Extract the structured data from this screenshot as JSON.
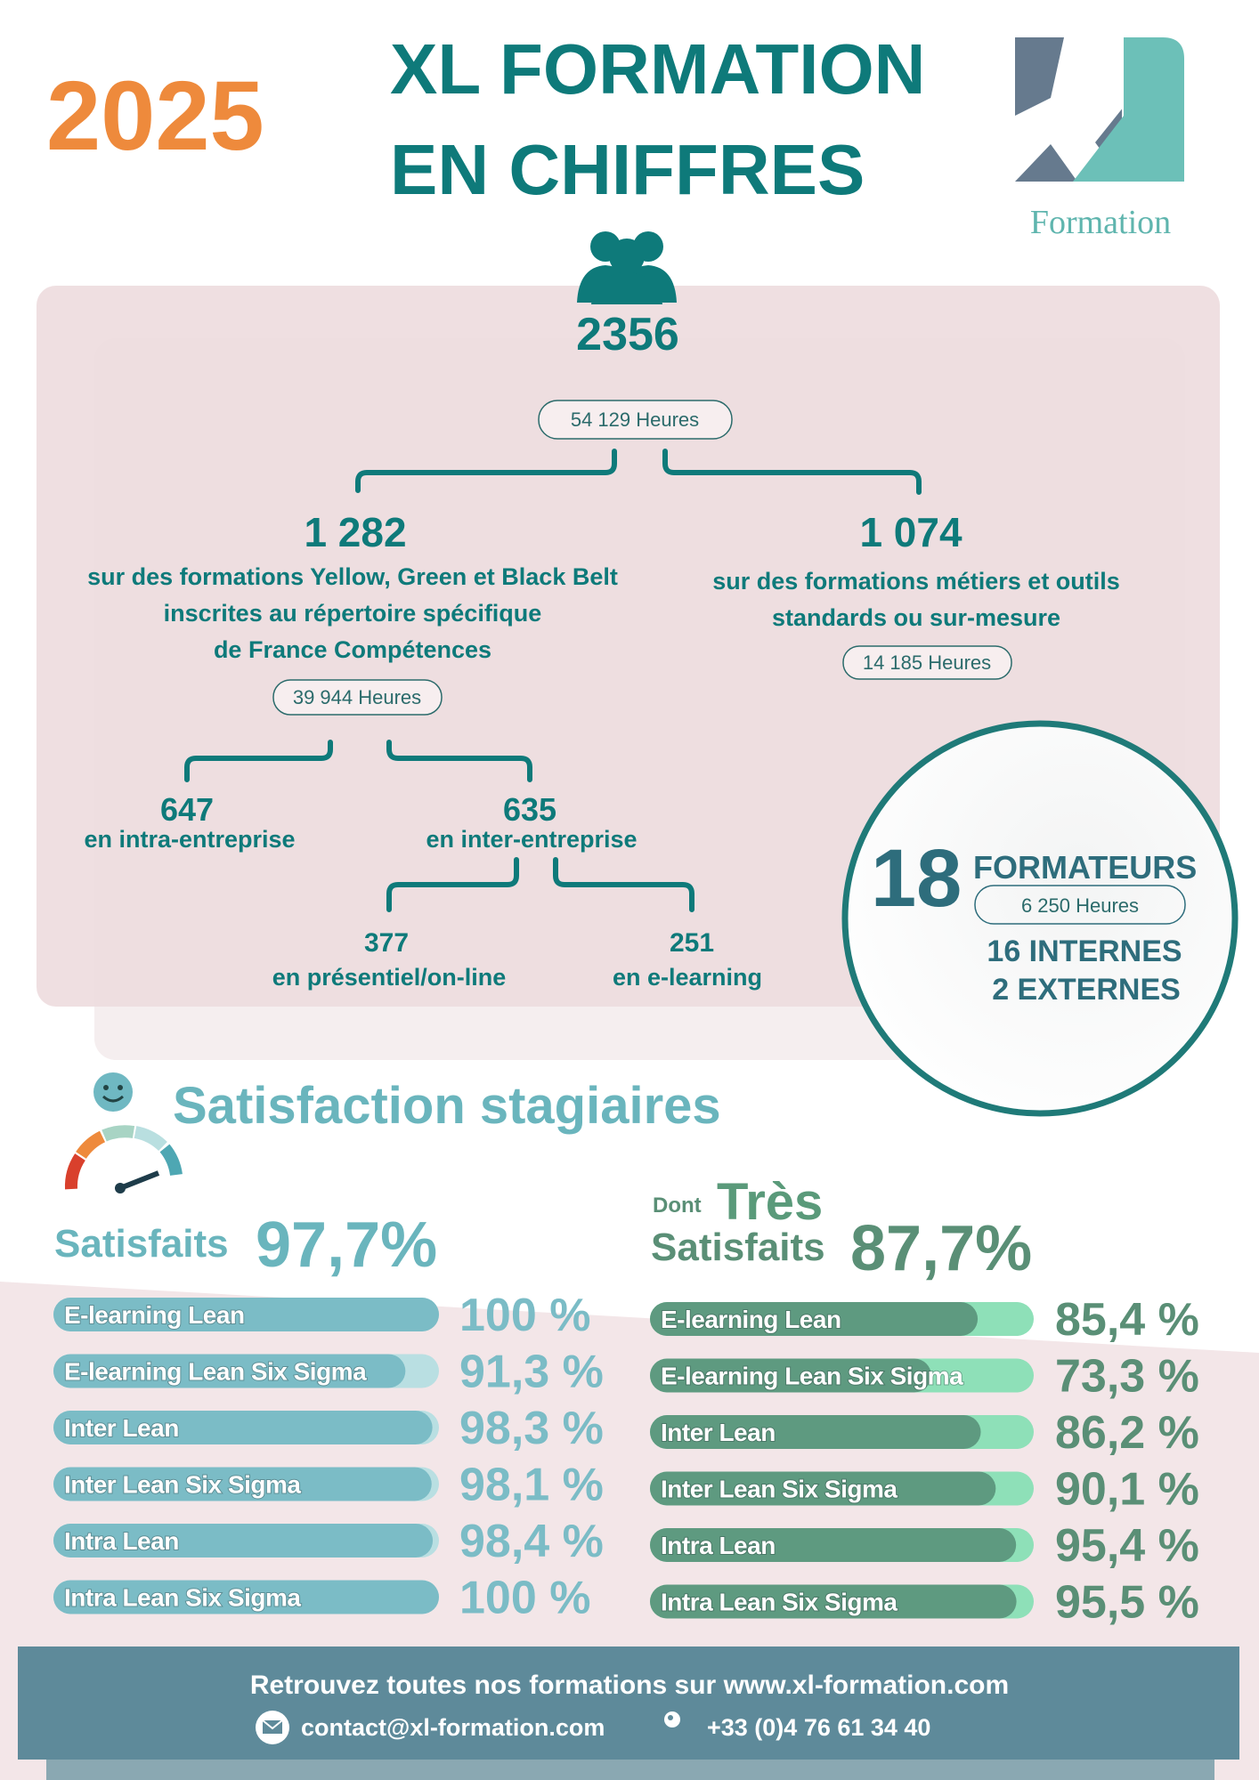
{
  "header": {
    "year": "2025",
    "title_lines": [
      "XL FORMATION",
      "EN CHIFFRES"
    ],
    "logo_text": "Formation"
  },
  "overview": {
    "total": "2356",
    "total_hours": "54 129 Heures",
    "branches": [
      {
        "count": "1 282",
        "lines": [
          "sur des formations Yellow, Green et Black Belt",
          "inscrites au répertoire spécifique",
          "de France Compétences"
        ],
        "hours": "39 944 Heures"
      },
      {
        "count": "1 074",
        "lines": [
          "sur des formations métiers et outils",
          "standards ou sur-mesure"
        ],
        "hours": "14 185 Heures"
      }
    ],
    "intra": {
      "count": "647",
      "label": "en intra-entreprise"
    },
    "inter": {
      "count": "635",
      "label": "en inter-entreprise"
    },
    "presential": {
      "count": "377",
      "label": "en présentiel/on-line"
    },
    "elearning": {
      "count": "251",
      "label": "en e-learning"
    }
  },
  "trainers": {
    "count": "18",
    "label": "FORMATEURS",
    "hours": "6 250 Heures",
    "internal": "16 INTERNES",
    "external": "2 EXTERNES"
  },
  "satisfaction": {
    "title": "Satisfaction stagiaires",
    "satisfied": {
      "label": "Satisfaits",
      "value": "97,7%",
      "items": [
        {
          "name": "E-learning Lean",
          "value": 100,
          "label": "100 %"
        },
        {
          "name": "E-learning Lean Six Sigma",
          "value": 91.3,
          "label": "91,3 %"
        },
        {
          "name": "Inter Lean",
          "value": 98.3,
          "label": "98,3 %"
        },
        {
          "name": "Inter Lean Six Sigma",
          "value": 98.1,
          "label": "98,1 %"
        },
        {
          "name": "Intra Lean",
          "value": 98.4,
          "label": "98,4 %"
        },
        {
          "name": "Intra Lean Six Sigma",
          "value": 100,
          "label": "100 %"
        }
      ]
    },
    "very_satisfied": {
      "prefix": "Dont",
      "emphasis": "Très",
      "label": "Satisfaits",
      "value": "87,7%",
      "items": [
        {
          "name": "E-learning Lean",
          "value": 85.4,
          "label": "85,4 %"
        },
        {
          "name": "E-learning Lean Six Sigma",
          "value": 73.3,
          "label": "73,3 %"
        },
        {
          "name": "Inter Lean",
          "value": 86.2,
          "label": "86,2 %"
        },
        {
          "name": "Inter Lean Six Sigma",
          "value": 90.1,
          "label": "90,1 %"
        },
        {
          "name": "Intra Lean",
          "value": 95.4,
          "label": "95,4 %"
        },
        {
          "name": "Intra Lean Six Sigma",
          "value": 95.5,
          "label": "95,5 %"
        }
      ]
    }
  },
  "footer": {
    "text": "Retrouvez toutes nos formations sur www.xl-formation.com",
    "email": "contact@xl-formation.com",
    "phone": "+33 (0)4 76 61 34 40"
  }
}
